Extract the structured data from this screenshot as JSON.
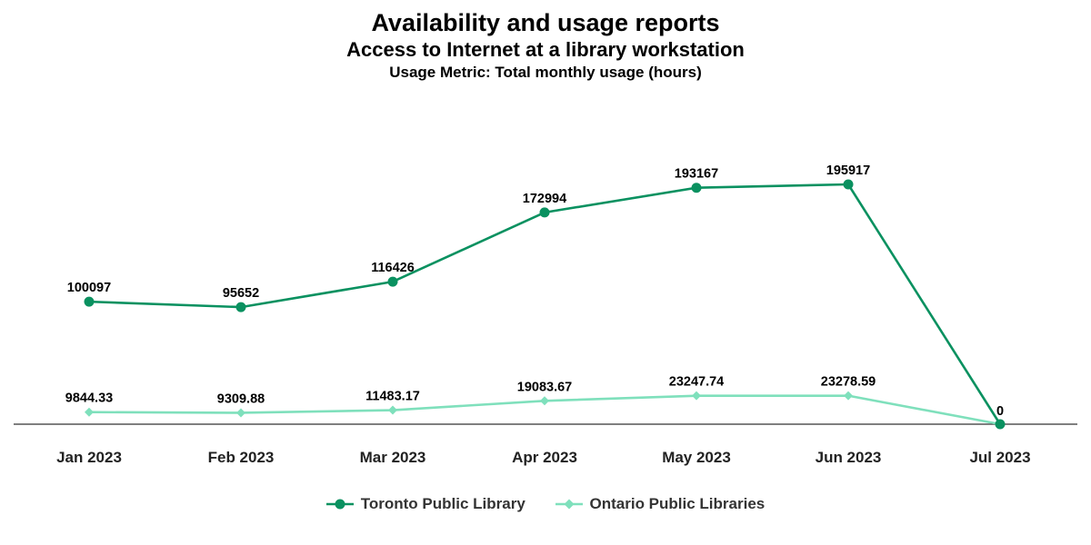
{
  "chart_data": {
    "type": "line",
    "title": "Availability and usage reports",
    "subtitle": "Access to Internet at a library workstation",
    "metric_label": "Usage Metric: Total monthly usage (hours)",
    "categories": [
      "Jan 2023",
      "Feb 2023",
      "Mar 2023",
      "Apr 2023",
      "May 2023",
      "Jun 2023",
      "Jul 2023"
    ],
    "series": [
      {
        "name": "Toronto Public Library",
        "color": "#0a9160",
        "marker": "circle",
        "values": [
          100097,
          95652,
          116426,
          172994,
          193167,
          195917,
          0
        ],
        "labels": [
          "100097",
          "95652",
          "116426",
          "172994",
          "193167",
          "195917",
          "0"
        ]
      },
      {
        "name": "Ontario Public Libraries",
        "color": "#7fe0bc",
        "marker": "diamond",
        "values": [
          9844.33,
          9309.88,
          11483.17,
          19083.67,
          23247.74,
          23278.59,
          0
        ],
        "labels": [
          "9844.33",
          "9309.88",
          "11483.17",
          "19083.67",
          "23247.74",
          "23278.59",
          "0"
        ]
      }
    ],
    "ylim": [
      0,
      220000
    ],
    "legend_position": "bottom",
    "grid": false
  }
}
